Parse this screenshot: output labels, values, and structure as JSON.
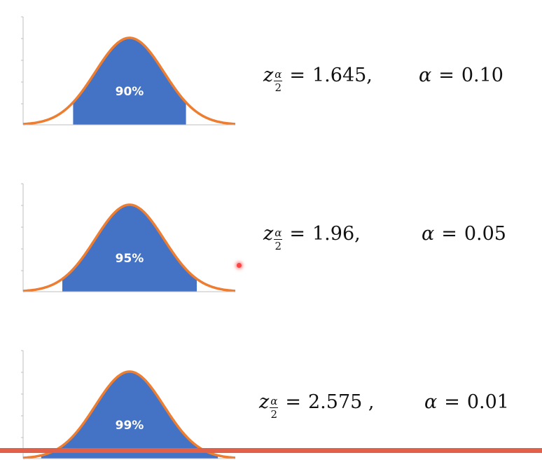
{
  "colors": {
    "fill": "#4472c4",
    "curve": "#ed7d31",
    "axis": "#bfbfbf",
    "bottom_bar": "#e0604a"
  },
  "rows": [
    {
      "confidence_label": "90%",
      "z_var": "z",
      "subscript_num": "α",
      "subscript_den": "2",
      "equals": "=",
      "z_value": "1.645,",
      "alpha_symbol": "α",
      "alpha_value": "0.10",
      "shaded_z": 1.645
    },
    {
      "confidence_label": "95%",
      "z_var": "z",
      "subscript_num": "α",
      "subscript_den": "2",
      "equals": "=",
      "z_value": "1.96,",
      "alpha_symbol": "α",
      "alpha_value": "0.05",
      "shaded_z": 1.96
    },
    {
      "confidence_label": "99%",
      "z_var": "z",
      "subscript_num": "α",
      "subscript_den": "2",
      "equals": "=",
      "z_value": "2.575 ,",
      "alpha_symbol": "α",
      "alpha_value": "0.01",
      "shaded_z": 2.575
    }
  ]
}
